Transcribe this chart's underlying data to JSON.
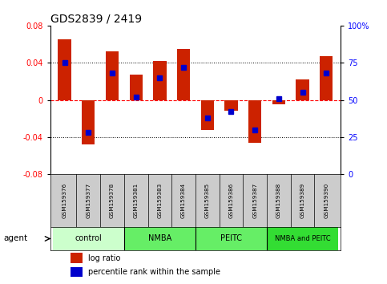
{
  "title": "GDS2839 / 2419",
  "samples": [
    "GSM159376",
    "GSM159377",
    "GSM159378",
    "GSM159381",
    "GSM159383",
    "GSM159384",
    "GSM159385",
    "GSM159386",
    "GSM159387",
    "GSM159388",
    "GSM159389",
    "GSM159390"
  ],
  "log_ratio": [
    0.065,
    -0.048,
    0.052,
    0.027,
    0.042,
    0.055,
    -0.032,
    -0.012,
    -0.046,
    -0.005,
    0.022,
    0.047
  ],
  "percentile_rank": [
    75,
    28,
    68,
    52,
    65,
    72,
    38,
    42,
    30,
    51,
    55,
    68
  ],
  "groups": [
    {
      "label": "control",
      "start": 0,
      "end": 3,
      "color": "#ccffcc"
    },
    {
      "label": "NMBA",
      "start": 3,
      "end": 6,
      "color": "#66ee66"
    },
    {
      "label": "PEITC",
      "start": 6,
      "end": 9,
      "color": "#66ee66"
    },
    {
      "label": "NMBA and PEITC",
      "start": 9,
      "end": 12,
      "color": "#33dd33"
    }
  ],
  "ylim_left": [
    -0.08,
    0.08
  ],
  "ylim_right": [
    0,
    100
  ],
  "bar_color": "#cc2200",
  "dot_color": "#0000cc",
  "bar_width": 0.55,
  "legend_items": [
    "log ratio",
    "percentile rank within the sample"
  ],
  "yticks_left": [
    -0.08,
    -0.04,
    0.0,
    0.04,
    0.08
  ],
  "yticks_right": [
    0,
    25,
    50,
    75,
    100
  ],
  "ytick_labels_left": [
    "-0.08",
    "-0.04",
    "0",
    "0.04",
    "0.08"
  ],
  "ytick_labels_right": [
    "0",
    "25",
    "50",
    "75",
    "100%"
  ]
}
